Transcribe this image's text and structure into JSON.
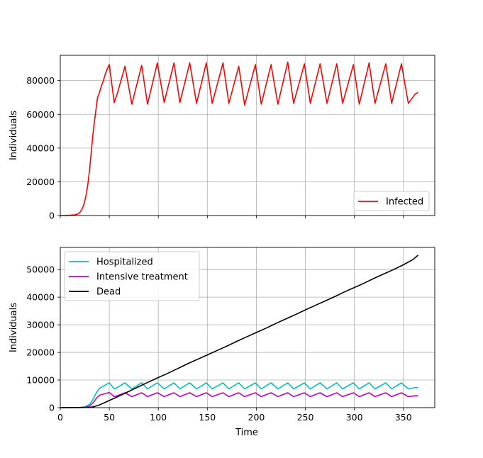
{
  "chart_data": [
    {
      "type": "line",
      "title": "",
      "xlabel": "",
      "ylabel": "Individuals",
      "xlim": [
        0,
        382
      ],
      "ylim": [
        0,
        95000
      ],
      "xticks": [
        0,
        50,
        100,
        150,
        200,
        250,
        300,
        350
      ],
      "yticks": [
        0,
        20000,
        40000,
        60000,
        80000
      ],
      "ytick_labels": [
        "0",
        "20000",
        "40000",
        "60000",
        "80000"
      ],
      "xtick_labels_visible": false,
      "grid": true,
      "legend_position": "lower-right",
      "series": [
        {
          "name": "Infected",
          "color": "#ff0000",
          "x": [
            0,
            5,
            10,
            15,
            18,
            20,
            22,
            24,
            26,
            28,
            30,
            32,
            34,
            36,
            38,
            40,
            42,
            44,
            46,
            48,
            50,
            55,
            58,
            66,
            73,
            83,
            89,
            99,
            106,
            116,
            122,
            132,
            139,
            149,
            155,
            166,
            172,
            182,
            188,
            199,
            205,
            215,
            222,
            232,
            238,
            249,
            255,
            265,
            272,
            282,
            288,
            299,
            305,
            315,
            321,
            332,
            338,
            348,
            355,
            362,
            365
          ],
          "values": [
            0,
            50,
            150,
            400,
            900,
            1800,
            3500,
            6500,
            11000,
            18000,
            28000,
            40000,
            52000,
            61000,
            70000,
            73000,
            77000,
            80000,
            84000,
            87000,
            89500,
            67000,
            72000,
            88500,
            66000,
            89000,
            66000,
            90500,
            67000,
            90500,
            67000,
            90500,
            66500,
            90500,
            66500,
            90500,
            66500,
            88500,
            65500,
            89500,
            66000,
            89500,
            66000,
            91000,
            66500,
            90000,
            66500,
            90000,
            66500,
            90000,
            66500,
            89500,
            66000,
            90500,
            66500,
            90000,
            66500,
            90000,
            66500,
            72000,
            73000
          ]
        }
      ]
    },
    {
      "type": "line",
      "title": "",
      "xlabel": "Time",
      "ylabel": "Individuals",
      "xlim": [
        0,
        382
      ],
      "ylim": [
        0,
        58000
      ],
      "xticks": [
        0,
        50,
        100,
        150,
        200,
        250,
        300,
        350
      ],
      "xtick_labels": [
        "0",
        "50",
        "100",
        "150",
        "200",
        "250",
        "300",
        "350"
      ],
      "yticks": [
        0,
        10000,
        20000,
        30000,
        40000,
        50000
      ],
      "ytick_labels": [
        "0",
        "10000",
        "20000",
        "30000",
        "40000",
        "50000"
      ],
      "grid": true,
      "legend_position": "upper-left",
      "series": [
        {
          "name": "Hospitalized",
          "color": "#00bfbf",
          "x": [
            0,
            20,
            25,
            30,
            34,
            37,
            40,
            45,
            50,
            55,
            58,
            66,
            73,
            83,
            89,
            99,
            106,
            116,
            122,
            132,
            139,
            149,
            155,
            166,
            172,
            182,
            188,
            199,
            205,
            215,
            222,
            232,
            238,
            249,
            255,
            265,
            272,
            282,
            288,
            299,
            305,
            315,
            321,
            332,
            338,
            348,
            355,
            362,
            365
          ],
          "values": [
            0,
            50,
            300,
            1200,
            3500,
            5500,
            7000,
            8000,
            9000,
            6800,
            7300,
            9000,
            6800,
            9000,
            6800,
            9000,
            6800,
            9000,
            6800,
            9000,
            6800,
            9000,
            6800,
            9000,
            6800,
            9000,
            6800,
            9000,
            6800,
            9000,
            6800,
            9000,
            6800,
            9000,
            6800,
            9000,
            6800,
            9000,
            6800,
            9000,
            6800,
            9000,
            6800,
            9000,
            6800,
            9000,
            6800,
            7300,
            7300
          ]
        },
        {
          "name": "Intensive treatment",
          "color": "#bf00bf",
          "x": [
            0,
            20,
            25,
            30,
            34,
            37,
            40,
            45,
            50,
            55,
            58,
            66,
            73,
            83,
            89,
            99,
            106,
            116,
            122,
            132,
            139,
            149,
            155,
            166,
            172,
            182,
            188,
            199,
            205,
            215,
            222,
            232,
            238,
            249,
            255,
            265,
            272,
            282,
            288,
            299,
            305,
            315,
            321,
            332,
            338,
            348,
            355,
            362,
            365
          ],
          "values": [
            0,
            30,
            150,
            600,
            2000,
            3500,
            4500,
            5000,
            5500,
            4000,
            4300,
            5400,
            4000,
            5400,
            4000,
            5400,
            4000,
            5400,
            4000,
            5400,
            4000,
            5400,
            4000,
            5400,
            4000,
            5400,
            4000,
            5400,
            4000,
            5400,
            4000,
            5400,
            4000,
            5400,
            4000,
            5400,
            4000,
            5400,
            4000,
            5400,
            4000,
            5400,
            4000,
            5400,
            4000,
            5400,
            4000,
            4300,
            4300
          ]
        },
        {
          "name": "Dead",
          "color": "#000000",
          "x": [
            0,
            30,
            35,
            40,
            45,
            50,
            60,
            70,
            80,
            90,
            100,
            110,
            120,
            130,
            140,
            150,
            160,
            170,
            180,
            190,
            200,
            210,
            220,
            230,
            240,
            250,
            260,
            270,
            280,
            290,
            300,
            310,
            320,
            330,
            340,
            350,
            360,
            365
          ],
          "values": [
            0,
            100,
            400,
            1000,
            1800,
            2600,
            4200,
            5900,
            7600,
            9300,
            10900,
            12500,
            14200,
            15900,
            17500,
            19100,
            20700,
            22300,
            24000,
            25600,
            27200,
            28800,
            30500,
            32100,
            33700,
            35400,
            37000,
            38600,
            40200,
            41900,
            43500,
            45100,
            46800,
            48400,
            50000,
            51700,
            53700,
            55200
          ]
        }
      ]
    }
  ]
}
